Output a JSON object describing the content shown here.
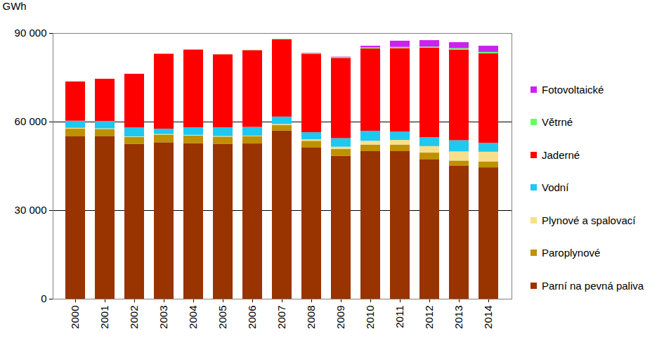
{
  "chart_data": {
    "type": "bar",
    "stacked": true,
    "grid": true,
    "legend": "right",
    "y_label": "GWh",
    "categories": [
      "2000",
      "2001",
      "2002",
      "2003",
      "2004",
      "2005",
      "2006",
      "2007",
      "2008",
      "2009",
      "2010",
      "2011",
      "2012",
      "2013",
      "2014"
    ],
    "ylim": [
      0,
      90000
    ],
    "yticks": [
      0,
      {
        "value": 30000,
        "label": "30 000"
      },
      {
        "value": 60000,
        "label": "60 000"
      },
      {
        "value": 90000,
        "label": "90 000"
      }
    ],
    "series": [
      {
        "name": "Parní na pevná paliva",
        "color": "#993300",
        "values": [
          55000,
          55000,
          52500,
          53000,
          52700,
          52400,
          52600,
          57000,
          51200,
          48400,
          50000,
          50000,
          47300,
          45000,
          44500
        ]
      },
      {
        "name": "Paroplynové",
        "color": "#bf9000",
        "values": [
          2600,
          2500,
          2300,
          2600,
          2600,
          2500,
          2400,
          1800,
          2300,
          2300,
          2200,
          2200,
          2200,
          1800,
          2000
        ]
      },
      {
        "name": "Plynové a spalovací",
        "color": "#f7df8c",
        "values": [
          300,
          200,
          200,
          200,
          200,
          200,
          200,
          400,
          500,
          800,
          1300,
          1600,
          2200,
          3100,
          3300
        ]
      },
      {
        "name": "Vodní",
        "color": "#1ec8f0",
        "values": [
          2400,
          2500,
          3000,
          1800,
          2600,
          3000,
          3000,
          2500,
          2400,
          2900,
          3400,
          2800,
          3000,
          3800,
          3000
        ]
      },
      {
        "name": "Jaderné",
        "color": "#ff0000",
        "values": [
          13300,
          14300,
          18200,
          25400,
          26300,
          24700,
          26000,
          26200,
          26600,
          27200,
          27900,
          28300,
          30300,
          30700,
          30300
        ]
      },
      {
        "name": "Větrné",
        "color": "#66ff66",
        "values": [
          0,
          0,
          0,
          50,
          50,
          50,
          50,
          100,
          250,
          300,
          300,
          400,
          400,
          500,
          500
        ]
      },
      {
        "name": "Fotovoltaické",
        "color": "#cc22ee",
        "values": [
          0,
          0,
          0,
          0,
          0,
          0,
          0,
          0,
          100,
          100,
          600,
          2100,
          2200,
          2000,
          2100
        ]
      }
    ]
  }
}
